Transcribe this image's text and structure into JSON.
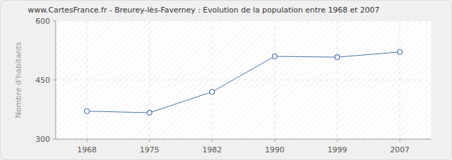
{
  "chart_data": {
    "type": "line",
    "title": "www.CartesFrance.fr - Breurey-lès-Faverney : Evolution de la population entre 1968 et 2007",
    "y_label": "Nombre d'habitants",
    "categories": [
      "1968",
      "1975",
      "1982",
      "1990",
      "1999",
      "2007"
    ],
    "values": [
      371,
      367,
      420,
      510,
      508,
      521
    ],
    "color": "#4a74a8",
    "marker": "circle",
    "ylim": [
      300,
      600
    ],
    "yticks": [
      300,
      450,
      600
    ],
    "grid": true
  }
}
